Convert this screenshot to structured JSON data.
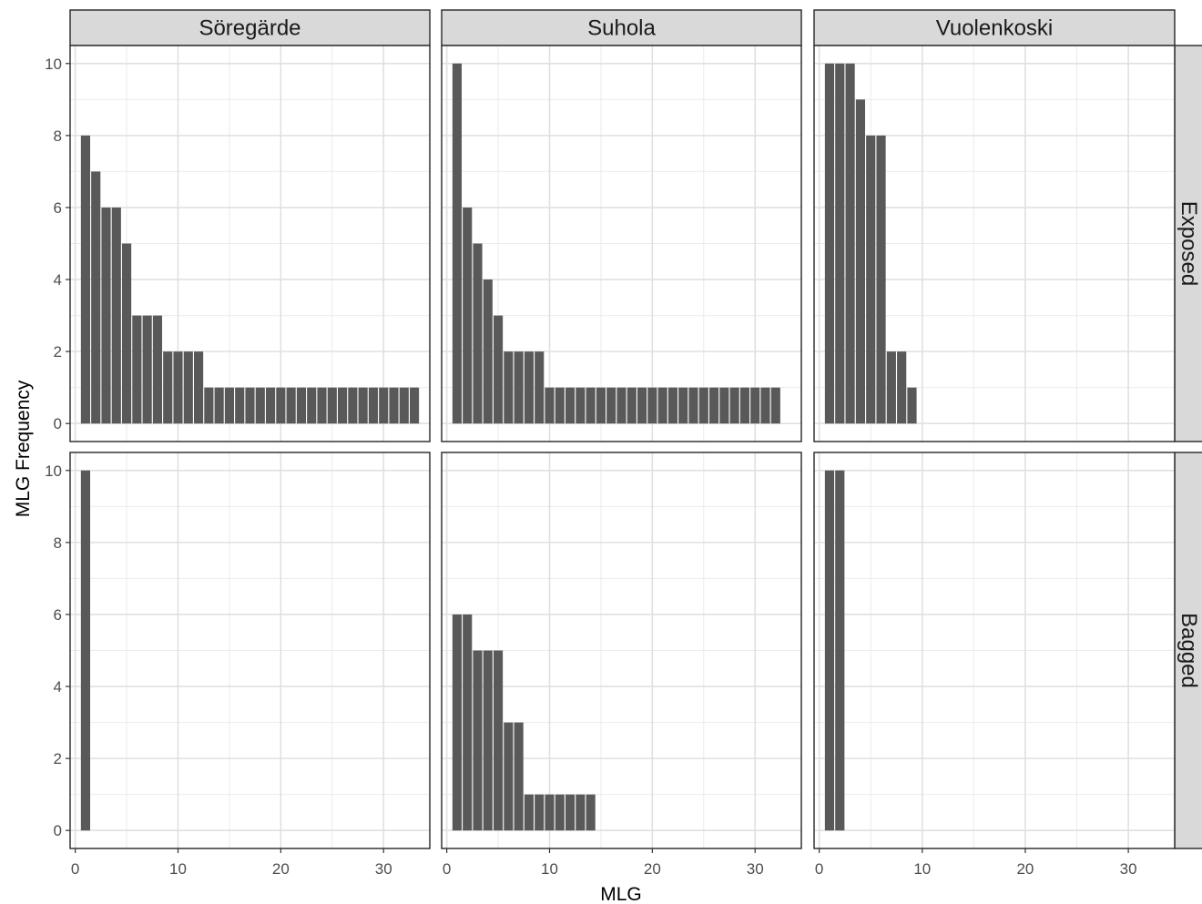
{
  "chart_data": {
    "type": "bar",
    "xlabel": "MLG",
    "ylabel": "MLG Frequency",
    "xlim": [
      -0.5,
      34.5
    ],
    "ylim": [
      -0.5,
      10.5
    ],
    "x_ticks": [
      0,
      10,
      20,
      30
    ],
    "y_ticks": [
      0,
      2,
      4,
      6,
      8,
      10
    ],
    "grid": true,
    "bar_color": "#595959",
    "strip_color": "#d9d9d9",
    "columns": [
      "Söregärde",
      "Suhola",
      "Vuolenkoski"
    ],
    "rows": [
      "Exposed",
      "Bagged"
    ],
    "panels": [
      {
        "column": "Söregärde",
        "row": "Exposed",
        "x": [
          1,
          2,
          3,
          4,
          5,
          6,
          7,
          8,
          9,
          10,
          11,
          12,
          13,
          14,
          15,
          16,
          17,
          18,
          19,
          20,
          21,
          22,
          23,
          24,
          25,
          26,
          27,
          28,
          29,
          30,
          31,
          32,
          33
        ],
        "values": [
          8,
          7,
          6,
          6,
          5,
          3,
          3,
          3,
          2,
          2,
          2,
          2,
          1,
          1,
          1,
          1,
          1,
          1,
          1,
          1,
          1,
          1,
          1,
          1,
          1,
          1,
          1,
          1,
          1,
          1,
          1,
          1,
          1
        ]
      },
      {
        "column": "Suhola",
        "row": "Exposed",
        "x": [
          1,
          2,
          3,
          4,
          5,
          6,
          7,
          8,
          9,
          10,
          11,
          12,
          13,
          14,
          15,
          16,
          17,
          18,
          19,
          20,
          21,
          22,
          23,
          24,
          25,
          26,
          27,
          28,
          29,
          30,
          31,
          32
        ],
        "values": [
          10,
          6,
          5,
          4,
          3,
          2,
          2,
          2,
          2,
          1,
          1,
          1,
          1,
          1,
          1,
          1,
          1,
          1,
          1,
          1,
          1,
          1,
          1,
          1,
          1,
          1,
          1,
          1,
          1,
          1,
          1,
          1
        ]
      },
      {
        "column": "Vuolenkoski",
        "row": "Exposed",
        "x": [
          1,
          2,
          3,
          4,
          5,
          6,
          7,
          8,
          9
        ],
        "values": [
          10,
          10,
          10,
          9,
          8,
          8,
          2,
          2,
          1
        ]
      },
      {
        "column": "Söregärde",
        "row": "Bagged",
        "x": [
          1
        ],
        "values": [
          10
        ]
      },
      {
        "column": "Suhola",
        "row": "Bagged",
        "x": [
          1,
          2,
          3,
          4,
          5,
          6,
          7,
          8,
          9,
          10,
          11,
          12,
          13,
          14
        ],
        "values": [
          6,
          6,
          5,
          5,
          5,
          3,
          3,
          1,
          1,
          1,
          1,
          1,
          1,
          1
        ]
      },
      {
        "column": "Vuolenkoski",
        "row": "Bagged",
        "x": [
          1,
          2
        ],
        "values": [
          10,
          10
        ]
      }
    ]
  }
}
